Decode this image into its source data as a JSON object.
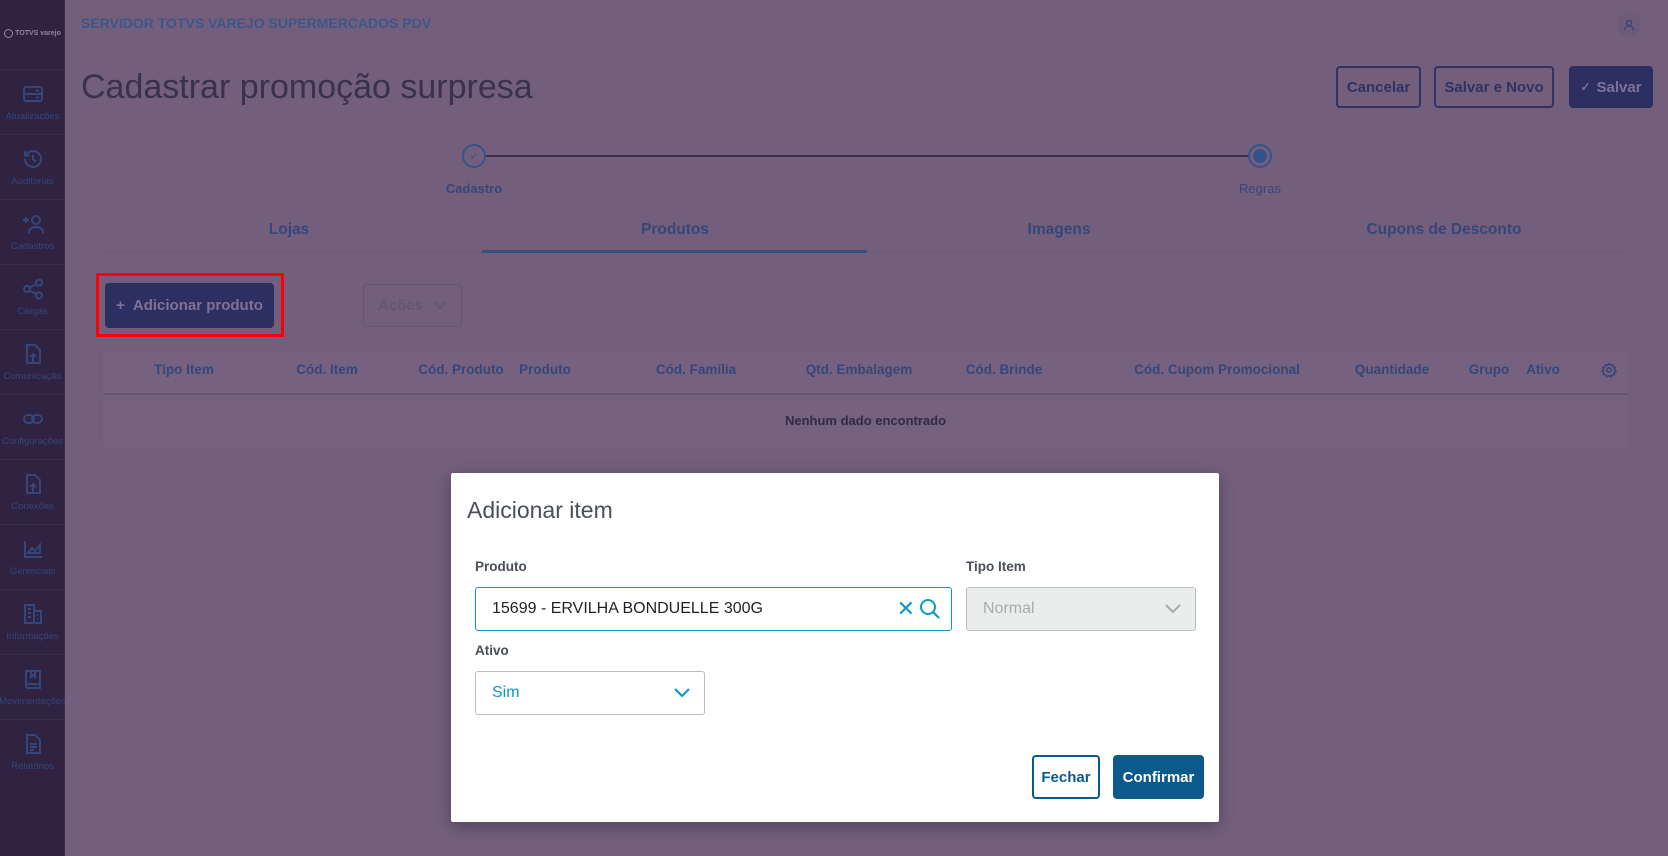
{
  "app": {
    "logo": "TOTVS varejo",
    "server_title": "SERVIDOR TOTVS VAREJO SUPERMERCADOS PDV"
  },
  "sidebar": {
    "items": [
      {
        "label": "Atualizações",
        "icon": "server-icon"
      },
      {
        "label": "Auditorias",
        "icon": "history-icon"
      },
      {
        "label": "Cadastros",
        "icon": "add-user-icon"
      },
      {
        "label": "Cargas",
        "icon": "share-icon"
      },
      {
        "label": "Comunicação",
        "icon": "file-upload-icon"
      },
      {
        "label": "Configurações",
        "icon": "link-icon"
      },
      {
        "label": "Conexões",
        "icon": "file-upload-icon"
      },
      {
        "label": "Gerenciais",
        "icon": "chart-icon"
      },
      {
        "label": "Informações",
        "icon": "building-icon"
      },
      {
        "label": "Movimentações",
        "icon": "book-icon"
      },
      {
        "label": "Relatórios",
        "icon": "document-icon"
      }
    ]
  },
  "page": {
    "title": "Cadastrar promoção surpresa",
    "cancel": "Cancelar",
    "save_new": "Salvar e Novo",
    "save": "Salvar"
  },
  "stepper": {
    "steps": [
      {
        "label": "Cadastro",
        "status": "done"
      },
      {
        "label": "Regras",
        "status": "active"
      }
    ]
  },
  "tabs": [
    {
      "label": "Lojas"
    },
    {
      "label": "Produtos",
      "active": true
    },
    {
      "label": "Imagens"
    },
    {
      "label": "Cupons de Desconto"
    }
  ],
  "toolbar": {
    "add_product": "Adicionar produto",
    "actions": "Ações"
  },
  "table": {
    "columns": [
      "Tipo Item",
      "Cód. Item",
      "Cód. Produto",
      "Produto",
      "Cód. Família",
      "Qtd. Embalagem",
      "Cód. Brinde",
      "Cód. Cupom Promocional",
      "Quantidade",
      "Grupo",
      "Ativo"
    ],
    "empty": "Nenhum dado encontrado"
  },
  "modal": {
    "title": "Adicionar item",
    "produto_label": "Produto",
    "produto_value": "15699 - ERVILHA BONDUELLE 300G",
    "tipo_label": "Tipo Item",
    "tipo_value": "Normal",
    "ativo_label": "Ativo",
    "ativo_value": "Sim",
    "close": "Fechar",
    "confirm": "Confirmar"
  },
  "colors": {
    "accent": "#0c9abe",
    "primary": "#0c5a8c",
    "highlight": "#ff0000"
  }
}
